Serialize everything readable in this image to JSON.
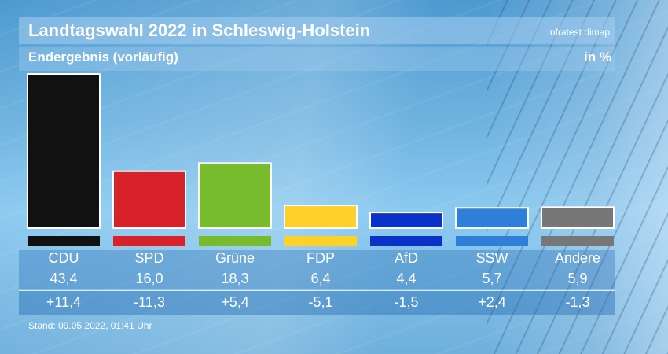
{
  "header": {
    "title": "Landtagswahl 2022 in Schleswig-Holstein",
    "source": "infratest dimap",
    "subtitle": "Endergebnis (vorläufig)",
    "unit": "in %"
  },
  "footer": {
    "stand": "Stand: 09.05.2022, 01:41 Uhr"
  },
  "colors": {
    "CDU": "#111111",
    "SPD": "#d8222a",
    "Grüne": "#78bb2c",
    "FDP": "#fdd02a",
    "AfD": "#0a31c8",
    "SSW": "#2f7fd8",
    "Andere": "#777777"
  },
  "chart_data": {
    "type": "bar",
    "title": "Landtagswahl 2022 in Schleswig-Holstein",
    "subtitle": "Endergebnis (vorläufig)",
    "ylabel": "in %",
    "categories": [
      "CDU",
      "SPD",
      "Grüne",
      "FDP",
      "AfD",
      "SSW",
      "Andere"
    ],
    "values": [
      43.4,
      16.0,
      18.3,
      6.4,
      4.4,
      5.7,
      5.9
    ],
    "value_labels": [
      "43,4",
      "16,0",
      "18,3",
      "6,4",
      "4,4",
      "5,7",
      "5,9"
    ],
    "changes": [
      11.4,
      -11.3,
      5.4,
      -5.1,
      -1.5,
      2.4,
      -1.3
    ],
    "change_labels": [
      "+11,4",
      "-11,3",
      "+5,4",
      "-5,1",
      "-1,5",
      "+2,4",
      "-1,3"
    ],
    "ylim": [
      0,
      43.4
    ],
    "grid": false,
    "legend": "none"
  }
}
